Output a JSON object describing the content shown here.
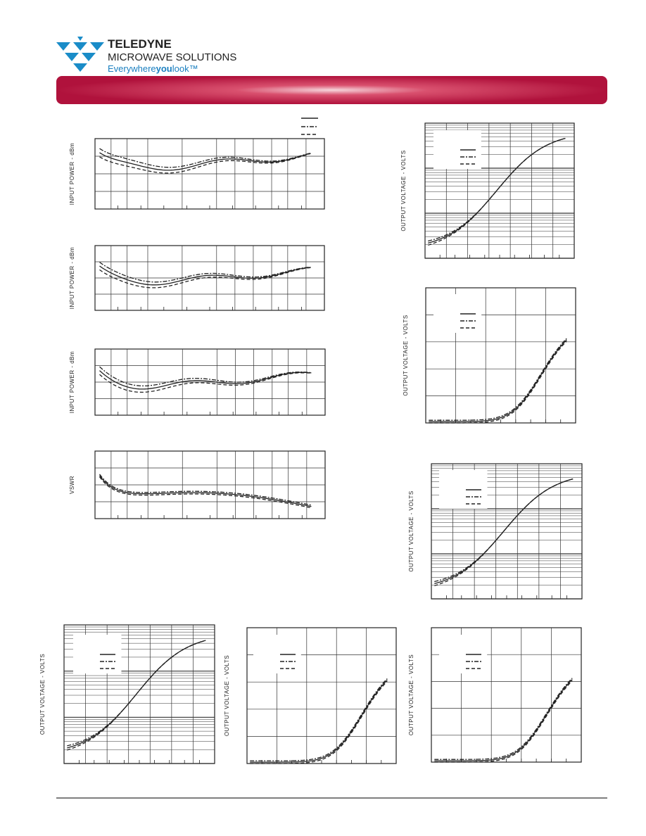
{
  "header": {
    "brand": "TELEDYNE",
    "division": "MICROWAVE SOLUTIONS",
    "tagline": [
      "Everywhere",
      "you",
      "look™"
    ]
  },
  "plots": [
    {
      "y_label": "INPUT POWER - dBm"
    },
    {
      "y_label": "INPUT POWER - dBm"
    },
    {
      "y_label": "INPUT POWER - dBm"
    },
    {
      "y_label": "VSWR"
    },
    {
      "y_label": "OUTPUT VOLTAGE - VOLTS"
    },
    {
      "y_label": "OUTPUT VOLTAGE - VOLTS"
    },
    {
      "y_label": "OUTPUT VOLTAGE - VOLTS"
    },
    {
      "y_label": "OUTPUT VOLTAGE - VOLTS"
    },
    {
      "y_label": "OUTPUT VOLTAGE - VOLTS"
    },
    {
      "y_label": "OUTPUT VOLTAGE - VOLTS"
    }
  ]
}
